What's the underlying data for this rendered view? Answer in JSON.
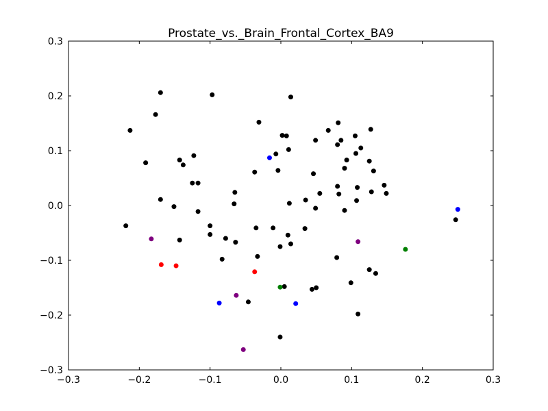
{
  "chart_data": {
    "type": "scatter",
    "title": "Prostate_vs._Brain_Frontal_Cortex_BA9",
    "xlabel": "",
    "ylabel": "",
    "xlim": [
      -0.3,
      0.3
    ],
    "ylim": [
      -0.3,
      0.3
    ],
    "grid": false,
    "x_ticks": [
      -0.3,
      -0.2,
      -0.1,
      0.0,
      0.1,
      0.2,
      0.3
    ],
    "x_tick_labels": [
      "−0.3",
      "−0.2",
      "−0.1",
      "0.0",
      "0.1",
      "0.2",
      "0.3"
    ],
    "y_ticks": [
      0.3,
      0.2,
      0.1,
      0.0,
      -0.1,
      -0.2,
      -0.3
    ],
    "y_tick_labels": [
      "0.3",
      "0.2",
      "0.1",
      "0.0",
      "−0.1",
      "−0.2",
      "−0.3"
    ],
    "colors": {
      "black": "#000000",
      "blue": "#0000ff",
      "red": "#ff0000",
      "green": "#007f00",
      "purple": "#7f007f"
    },
    "series": [
      {
        "color": "black",
        "points": [
          [
            -0.17,
            0.206
          ],
          [
            -0.097,
            0.202
          ],
          [
            0.014,
            0.198
          ],
          [
            -0.177,
            0.166
          ],
          [
            -0.213,
            0.137
          ],
          [
            -0.031,
            0.152
          ],
          [
            0.081,
            0.151
          ],
          [
            0.067,
            0.137
          ],
          [
            0.127,
            0.139
          ],
          [
            0.002,
            0.128
          ],
          [
            0.008,
            0.127
          ],
          [
            0.105,
            0.127
          ],
          [
            0.049,
            0.119
          ],
          [
            0.085,
            0.119
          ],
          [
            0.08,
            0.111
          ],
          [
            0.113,
            0.105
          ],
          [
            0.011,
            0.102
          ],
          [
            -0.007,
            0.094
          ],
          [
            0.106,
            0.095
          ],
          [
            -0.123,
            0.091
          ],
          [
            0.093,
            0.083
          ],
          [
            0.125,
            0.081
          ],
          [
            -0.191,
            0.078
          ],
          [
            -0.143,
            0.083
          ],
          [
            -0.138,
            0.074
          ],
          [
            0.09,
            0.068
          ],
          [
            -0.004,
            0.064
          ],
          [
            0.131,
            0.063
          ],
          [
            -0.037,
            0.061
          ],
          [
            0.046,
            0.058
          ],
          [
            -0.125,
            0.041
          ],
          [
            -0.117,
            0.041
          ],
          [
            0.146,
            0.037
          ],
          [
            0.08,
            0.035
          ],
          [
            0.108,
            0.033
          ],
          [
            -0.065,
            0.024
          ],
          [
            0.055,
            0.022
          ],
          [
            0.082,
            0.021
          ],
          [
            0.128,
            0.025
          ],
          [
            0.149,
            0.022
          ],
          [
            -0.17,
            0.011
          ],
          [
            0.035,
            0.01
          ],
          [
            0.107,
            0.009
          ],
          [
            -0.066,
            0.003
          ],
          [
            0.012,
            0.004
          ],
          [
            -0.151,
            -0.002
          ],
          [
            0.049,
            -0.005
          ],
          [
            0.09,
            -0.009
          ],
          [
            -0.117,
            -0.011
          ],
          [
            0.247,
            -0.026
          ],
          [
            -0.219,
            -0.037
          ],
          [
            -0.1,
            -0.037
          ],
          [
            -0.035,
            -0.041
          ],
          [
            -0.011,
            -0.041
          ],
          [
            0.034,
            -0.042
          ],
          [
            -0.1,
            -0.053
          ],
          [
            0.01,
            -0.054
          ],
          [
            -0.143,
            -0.063
          ],
          [
            -0.078,
            -0.06
          ],
          [
            -0.064,
            -0.067
          ],
          [
            0.014,
            -0.07
          ],
          [
            -0.001,
            -0.075
          ],
          [
            -0.033,
            -0.093
          ],
          [
            0.079,
            -0.095
          ],
          [
            -0.083,
            -0.098
          ],
          [
            0.125,
            -0.117
          ],
          [
            0.134,
            -0.124
          ],
          [
            0.099,
            -0.141
          ],
          [
            0.005,
            -0.148
          ],
          [
            0.05,
            -0.15
          ],
          [
            0.044,
            -0.153
          ],
          [
            -0.046,
            -0.176
          ],
          [
            0.109,
            -0.198
          ],
          [
            -0.001,
            -0.24
          ]
        ]
      },
      {
        "color": "blue",
        "points": [
          [
            -0.016,
            0.087
          ],
          [
            0.25,
            -0.007
          ],
          [
            -0.087,
            -0.178
          ],
          [
            0.021,
            -0.179
          ]
        ]
      },
      {
        "color": "red",
        "points": [
          [
            -0.169,
            -0.108
          ],
          [
            -0.148,
            -0.11
          ],
          [
            -0.037,
            -0.121
          ]
        ]
      },
      {
        "color": "green",
        "points": [
          [
            0.176,
            -0.08
          ],
          [
            -0.001,
            -0.149
          ]
        ]
      },
      {
        "color": "purple",
        "points": [
          [
            -0.183,
            -0.061
          ],
          [
            0.109,
            -0.066
          ],
          [
            -0.063,
            -0.164
          ],
          [
            -0.053,
            -0.263
          ]
        ]
      }
    ]
  }
}
